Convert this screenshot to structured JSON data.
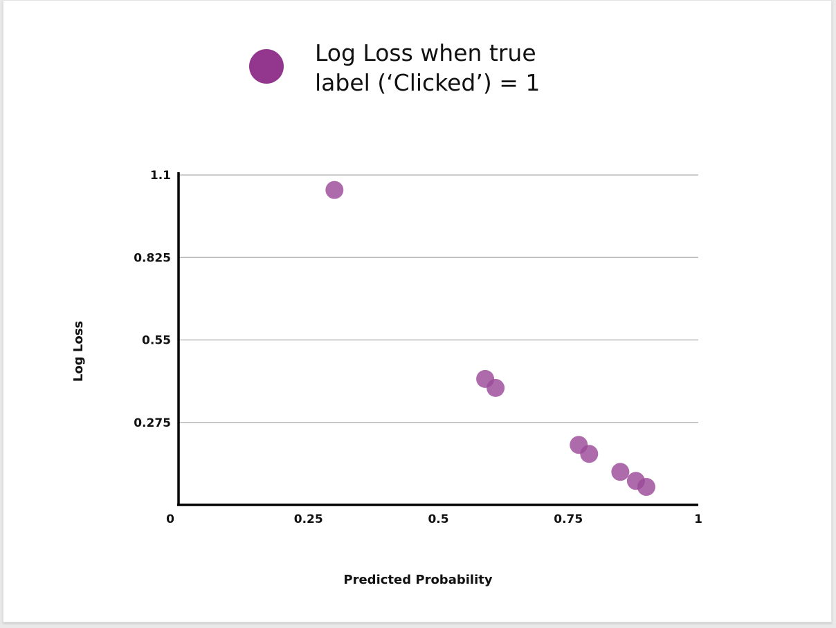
{
  "chart_data": {
    "type": "scatter",
    "legend": {
      "label_line1": "Log Loss when true",
      "label_line2": "label (‘Clicked’) = 1",
      "position": "top"
    },
    "xlabel": "Predicted Probability",
    "ylabel": "Log Loss",
    "xlim": [
      0,
      1
    ],
    "ylim": [
      0,
      1.1
    ],
    "x_ticks": [
      "0",
      "0.25",
      "0.5",
      "0.75",
      "1"
    ],
    "y_ticks": [
      "1.1",
      "0.825",
      "0.55",
      "0.275"
    ],
    "y_tick_values": [
      1.1,
      0.825,
      0.55,
      0.275
    ],
    "grid": "horizontal",
    "series": [
      {
        "color": "#9b4a98",
        "points": [
          {
            "x": 0.3,
            "y": 1.05
          },
          {
            "x": 0.59,
            "y": 0.42
          },
          {
            "x": 0.61,
            "y": 0.39
          },
          {
            "x": 0.77,
            "y": 0.2
          },
          {
            "x": 0.79,
            "y": 0.17
          },
          {
            "x": 0.85,
            "y": 0.11
          },
          {
            "x": 0.88,
            "y": 0.08
          },
          {
            "x": 0.9,
            "y": 0.06
          }
        ]
      }
    ]
  },
  "colors": {
    "marker": "#9b4a98",
    "legend_marker": "#93368e",
    "grid": "#bbbbbb",
    "axis": "#000000"
  }
}
